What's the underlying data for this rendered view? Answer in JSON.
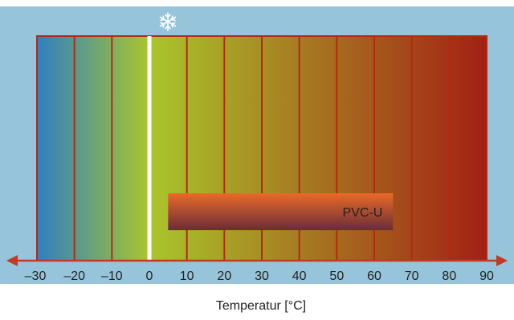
{
  "chart_data": {
    "type": "bar",
    "xlabel": "Temperatur [°C]",
    "xlim": [
      -30,
      90
    ],
    "ticks": [
      -30,
      -20,
      -10,
      0,
      10,
      20,
      30,
      40,
      50,
      60,
      70,
      80,
      90
    ],
    "tick_labels": [
      "–30",
      "–20",
      "–10",
      "0",
      "10",
      "20",
      "30",
      "40",
      "50",
      "60",
      "70",
      "80",
      "90"
    ],
    "freezing_point": 0,
    "series": [
      {
        "name": "PVC-U",
        "start": 5,
        "end": 65
      }
    ],
    "gradient_colors": [
      "#2f80c0",
      "#a9c62c",
      "#a32014"
    ],
    "colors": {
      "background": "#96c4da",
      "outline": "#b22a12",
      "axis": "#c23a22",
      "freeze_line": "#ffffff",
      "bar_top": "#e96a28",
      "bar_bottom": "#6a2c38",
      "text": "#222222"
    },
    "icons": {
      "freezing": "snowflake-icon"
    }
  }
}
